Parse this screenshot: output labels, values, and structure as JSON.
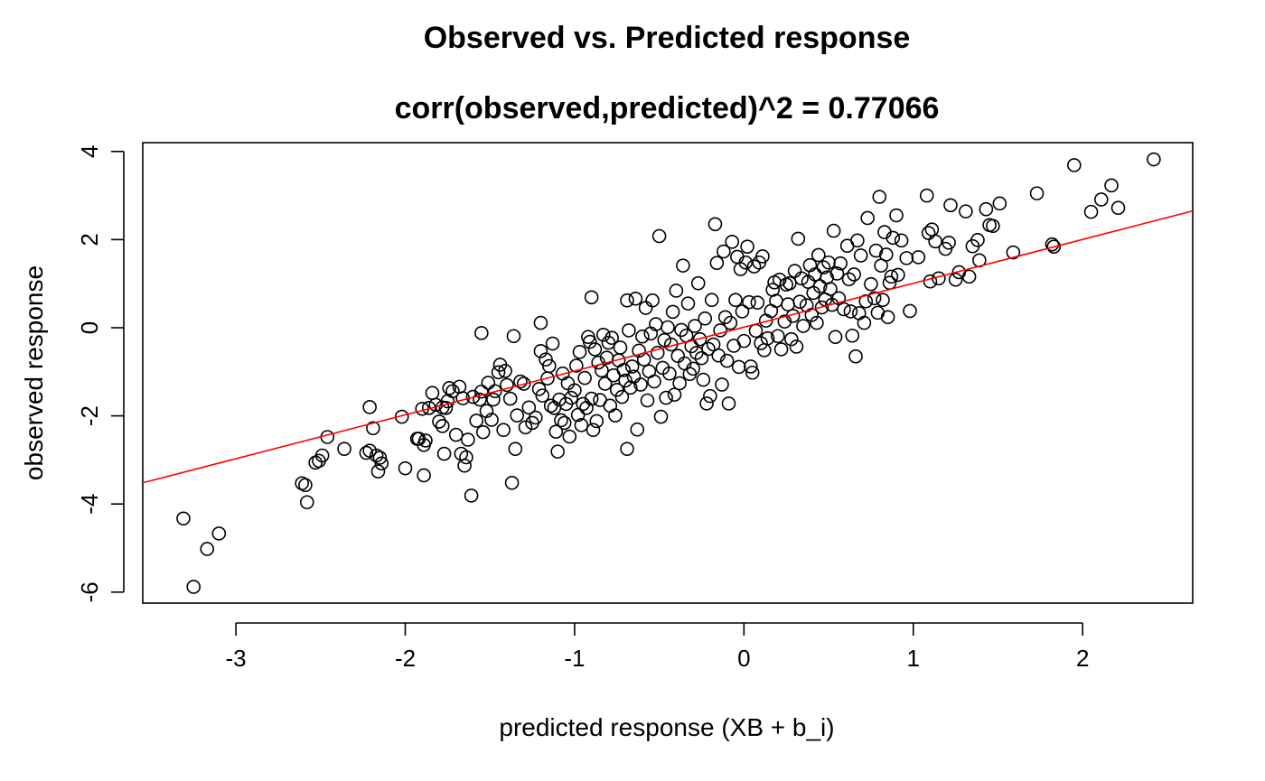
{
  "chart_data": {
    "type": "scatter",
    "title": "Observed vs. Predicted response",
    "subtitle": "corr(observed,predicted)^2 = 0.77066",
    "xlabel": "predicted response (XB + b_i)",
    "ylabel": "observed response",
    "xlim": [
      -3.55,
      2.65
    ],
    "ylim": [
      -6.25,
      4.2
    ],
    "xticks": [
      -3,
      -2,
      -1,
      0,
      1,
      2
    ],
    "yticks": [
      -6,
      -4,
      -2,
      0,
      2,
      4
    ],
    "marker": "open-circle",
    "fit_line": {
      "x": [
        -3.55,
        2.65
      ],
      "y": [
        -3.52,
        2.65
      ],
      "color": "#ff0000"
    },
    "points": [
      [
        -3.31,
        -4.33
      ],
      [
        -3.25,
        -5.88
      ],
      [
        -3.17,
        -5.02
      ],
      [
        -3.1,
        -4.67
      ],
      [
        -2.61,
        -3.53
      ],
      [
        -2.59,
        -3.57
      ],
      [
        -2.58,
        -3.96
      ],
      [
        -2.53,
        -3.06
      ],
      [
        -2.51,
        -3.02
      ],
      [
        -2.49,
        -2.9
      ],
      [
        -2.46,
        -2.48
      ],
      [
        -2.36,
        -2.75
      ],
      [
        -2.23,
        -2.84
      ],
      [
        -2.21,
        -2.79
      ],
      [
        -2.21,
        -1.8
      ],
      [
        -2.19,
        -2.28
      ],
      [
        -2.17,
        -2.9
      ],
      [
        -2.16,
        -3.26
      ],
      [
        -2.15,
        -2.95
      ],
      [
        -2.14,
        -3.08
      ],
      [
        -2.02,
        -2.02
      ],
      [
        -2.0,
        -3.19
      ],
      [
        -1.93,
        -2.52
      ],
      [
        -1.92,
        -2.52
      ],
      [
        -1.9,
        -1.84
      ],
      [
        -1.89,
        -2.66
      ],
      [
        -1.89,
        -3.35
      ],
      [
        -1.88,
        -2.56
      ],
      [
        -1.86,
        -1.82
      ],
      [
        -1.84,
        -1.48
      ],
      [
        -1.82,
        -1.75
      ],
      [
        -1.8,
        -2.13
      ],
      [
        -1.78,
        -2.23
      ],
      [
        -1.78,
        -1.81
      ],
      [
        -1.77,
        -2.86
      ],
      [
        -1.76,
        -1.82
      ],
      [
        -1.75,
        -1.67
      ],
      [
        -1.74,
        -1.37
      ],
      [
        -1.72,
        -1.44
      ],
      [
        -1.7,
        -2.43
      ],
      [
        -1.68,
        -1.34
      ],
      [
        -1.67,
        -2.86
      ],
      [
        -1.66,
        -1.6
      ],
      [
        -1.65,
        -3.13
      ],
      [
        -1.64,
        -2.94
      ],
      [
        -1.63,
        -2.54
      ],
      [
        -1.61,
        -3.81
      ],
      [
        -1.6,
        -1.57
      ],
      [
        -1.58,
        -2.11
      ],
      [
        -1.56,
        -1.63
      ],
      [
        -1.55,
        -1.45
      ],
      [
        -1.55,
        -0.12
      ],
      [
        -1.54,
        -2.37
      ],
      [
        -1.52,
        -1.89
      ],
      [
        -1.51,
        -1.25
      ],
      [
        -1.49,
        -2.09
      ],
      [
        -1.48,
        -1.63
      ],
      [
        -1.47,
        -1.44
      ],
      [
        -1.45,
        -1.01
      ],
      [
        -1.44,
        -0.84
      ],
      [
        -1.42,
        -2.32
      ],
      [
        -1.41,
        -0.98
      ],
      [
        -1.4,
        -1.3
      ],
      [
        -1.38,
        -1.61
      ],
      [
        -1.37,
        -3.52
      ],
      [
        -1.36,
        -0.19
      ],
      [
        -1.35,
        -2.75
      ],
      [
        -1.34,
        -1.99
      ],
      [
        -1.32,
        -1.22
      ],
      [
        -1.3,
        -1.27
      ],
      [
        -1.29,
        -2.26
      ],
      [
        -1.27,
        -1.81
      ],
      [
        -1.25,
        -2.16
      ],
      [
        -1.23,
        -2.04
      ],
      [
        -1.21,
        -1.39
      ],
      [
        -1.2,
        -0.53
      ],
      [
        -1.2,
        0.11
      ],
      [
        -1.19,
        -1.54
      ],
      [
        -1.17,
        -0.72
      ],
      [
        -1.16,
        -1.15
      ],
      [
        -1.15,
        -0.87
      ],
      [
        -1.14,
        -1.77
      ],
      [
        -1.13,
        -0.36
      ],
      [
        -1.12,
        -1.82
      ],
      [
        -1.11,
        -2.36
      ],
      [
        -1.1,
        -2.81
      ],
      [
        -1.09,
        -1.63
      ],
      [
        -1.08,
        -2.1
      ],
      [
        -1.07,
        -1.04
      ],
      [
        -1.06,
        -2.16
      ],
      [
        -1.05,
        -1.73
      ],
      [
        -1.04,
        -1.26
      ],
      [
        -1.03,
        -2.47
      ],
      [
        -1.02,
        -1.59
      ],
      [
        -1.0,
        -1.42
      ],
      [
        -0.99,
        -0.86
      ],
      [
        -0.98,
        -1.98
      ],
      [
        -0.97,
        -0.55
      ],
      [
        -0.96,
        -2.21
      ],
      [
        -0.95,
        -1.73
      ],
      [
        -0.94,
        -1.14
      ],
      [
        -0.93,
        -1.82
      ],
      [
        -0.92,
        -0.21
      ],
      [
        -0.91,
        -0.32
      ],
      [
        -0.9,
        -1.61
      ],
      [
        -0.9,
        0.69
      ],
      [
        -0.89,
        -2.32
      ],
      [
        -0.88,
        -0.49
      ],
      [
        -0.87,
        -2.12
      ],
      [
        -0.86,
        -0.79
      ],
      [
        -0.85,
        -1.64
      ],
      [
        -0.84,
        -0.97
      ],
      [
        -0.83,
        -0.16
      ],
      [
        -0.82,
        -1.27
      ],
      [
        -0.81,
        -0.68
      ],
      [
        -0.8,
        -0.34
      ],
      [
        -0.79,
        -1.77
      ],
      [
        -0.78,
        -0.23
      ],
      [
        -0.77,
        -1.08
      ],
      [
        -0.76,
        -1.99
      ],
      [
        -0.75,
        -1.41
      ],
      [
        -0.74,
        -0.74
      ],
      [
        -0.73,
        -0.45
      ],
      [
        -0.72,
        -1.57
      ],
      [
        -0.71,
        -0.96
      ],
      [
        -0.7,
        -1.2
      ],
      [
        -0.69,
        -2.75
      ],
      [
        -0.69,
        0.62
      ],
      [
        -0.68,
        -0.06
      ],
      [
        -0.67,
        -1.36
      ],
      [
        -0.66,
        -0.88
      ],
      [
        -0.65,
        -1.11
      ],
      [
        -0.64,
        0.66
      ],
      [
        -0.63,
        -2.31
      ],
      [
        -0.62,
        -0.52
      ],
      [
        -0.61,
        -1.29
      ],
      [
        -0.6,
        -0.2
      ],
      [
        -0.59,
        -0.72
      ],
      [
        -0.58,
        0.45
      ],
      [
        -0.57,
        -1.65
      ],
      [
        -0.56,
        -0.99
      ],
      [
        -0.55,
        -0.13
      ],
      [
        -0.54,
        0.62
      ],
      [
        -0.53,
        -1.22
      ],
      [
        -0.52,
        0.08
      ],
      [
        -0.51,
        -0.57
      ],
      [
        -0.5,
        2.08
      ],
      [
        -0.49,
        -2.02
      ],
      [
        -0.48,
        -0.91
      ],
      [
        -0.47,
        -0.28
      ],
      [
        -0.46,
        -1.59
      ],
      [
        -0.45,
        0.01
      ],
      [
        -0.44,
        -1.04
      ],
      [
        -0.43,
        -0.38
      ],
      [
        -0.42,
        0.36
      ],
      [
        -0.41,
        -1.52
      ],
      [
        -0.4,
        0.84
      ],
      [
        -0.39,
        -0.64
      ],
      [
        -0.38,
        -1.26
      ],
      [
        -0.37,
        -0.05
      ],
      [
        -0.36,
        1.41
      ],
      [
        -0.35,
        -0.81
      ],
      [
        -0.34,
        -0.18
      ],
      [
        -0.33,
        0.55
      ],
      [
        -0.32,
        -1.05
      ],
      [
        -0.31,
        -0.42
      ],
      [
        -0.3,
        -0.93
      ],
      [
        -0.29,
        0.04
      ],
      [
        -0.28,
        -0.57
      ],
      [
        -0.27,
        1.01
      ],
      [
        -0.26,
        -0.26
      ],
      [
        -0.25,
        -0.69
      ],
      [
        -0.24,
        -1.18
      ],
      [
        -0.23,
        0.21
      ],
      [
        -0.22,
        -1.72
      ],
      [
        -0.21,
        -0.48
      ],
      [
        -0.2,
        -1.55
      ],
      [
        -0.19,
        0.63
      ],
      [
        -0.18,
        -0.38
      ],
      [
        -0.17,
        2.35
      ],
      [
        -0.16,
        1.47
      ],
      [
        -0.15,
        -0.63
      ],
      [
        -0.14,
        -0.06
      ],
      [
        -0.13,
        -1.29
      ],
      [
        -0.12,
        1.73
      ],
      [
        -0.11,
        0.24
      ],
      [
        -0.1,
        -0.75
      ],
      [
        -0.09,
        -1.72
      ],
      [
        -0.08,
        0.11
      ],
      [
        -0.07,
        1.95
      ],
      [
        -0.06,
        -0.41
      ],
      [
        -0.05,
        0.63
      ],
      [
        -0.04,
        1.61
      ],
      [
        -0.03,
        -0.89
      ],
      [
        -0.02,
        1.33
      ],
      [
        -0.01,
        0.37
      ],
      [
        0.0,
        -0.3
      ],
      [
        0.01,
        1.48
      ],
      [
        0.02,
        1.84
      ],
      [
        0.03,
        0.58
      ],
      [
        0.04,
        -0.88
      ],
      [
        0.05,
        -1.02
      ],
      [
        0.06,
        1.39
      ],
      [
        0.07,
        -0.07
      ],
      [
        0.08,
        0.57
      ],
      [
        0.09,
        1.48
      ],
      [
        0.1,
        -0.35
      ],
      [
        0.11,
        1.62
      ],
      [
        0.12,
        -0.51
      ],
      [
        0.13,
        0.16
      ],
      [
        0.14,
        -0.24
      ],
      [
        0.16,
        0.38
      ],
      [
        0.17,
        0.86
      ],
      [
        0.18,
        1.03
      ],
      [
        0.19,
        0.61
      ],
      [
        0.2,
        -0.19
      ],
      [
        0.21,
        1.09
      ],
      [
        0.22,
        -0.49
      ],
      [
        0.24,
        0.14
      ],
      [
        0.25,
        0.98
      ],
      [
        0.26,
        0.53
      ],
      [
        0.27,
        1.01
      ],
      [
        0.28,
        -0.26
      ],
      [
        0.29,
        0.27
      ],
      [
        0.3,
        1.29
      ],
      [
        0.31,
        -0.43
      ],
      [
        0.32,
        2.02
      ],
      [
        0.33,
        0.59
      ],
      [
        0.34,
        1.12
      ],
      [
        0.35,
        0.04
      ],
      [
        0.37,
        0.51
      ],
      [
        0.38,
        1.04
      ],
      [
        0.39,
        1.42
      ],
      [
        0.4,
        0.29
      ],
      [
        0.41,
        0.79
      ],
      [
        0.42,
        1.21
      ],
      [
        0.43,
        0.11
      ],
      [
        0.44,
        1.65
      ],
      [
        0.45,
        0.94
      ],
      [
        0.46,
        0.46
      ],
      [
        0.47,
        1.37
      ],
      [
        0.48,
        0.64
      ],
      [
        0.49,
        1.14
      ],
      [
        0.5,
        1.48
      ],
      [
        0.51,
        0.88
      ],
      [
        0.52,
        0.52
      ],
      [
        0.53,
        2.2
      ],
      [
        0.54,
        -0.21
      ],
      [
        0.55,
        1.23
      ],
      [
        0.56,
        0.67
      ],
      [
        0.57,
        1.46
      ],
      [
        0.59,
        0.42
      ],
      [
        0.61,
        1.86
      ],
      [
        0.62,
        1.1
      ],
      [
        0.63,
        0.37
      ],
      [
        0.64,
        -0.18
      ],
      [
        0.65,
        1.21
      ],
      [
        0.66,
        -0.65
      ],
      [
        0.67,
        1.98
      ],
      [
        0.68,
        0.33
      ],
      [
        0.69,
        1.64
      ],
      [
        0.71,
        0.11
      ],
      [
        0.72,
        0.6
      ],
      [
        0.73,
        2.49
      ],
      [
        0.75,
        0.99
      ],
      [
        0.77,
        0.67
      ],
      [
        0.78,
        1.75
      ],
      [
        0.79,
        0.34
      ],
      [
        0.8,
        2.97
      ],
      [
        0.81,
        1.41
      ],
      [
        0.82,
        0.63
      ],
      [
        0.83,
        2.17
      ],
      [
        0.84,
        1.66
      ],
      [
        0.85,
        0.24
      ],
      [
        0.86,
        1.02
      ],
      [
        0.87,
        1.16
      ],
      [
        0.88,
        2.04
      ],
      [
        0.9,
        2.55
      ],
      [
        0.91,
        1.2
      ],
      [
        0.93,
        1.98
      ],
      [
        0.96,
        1.58
      ],
      [
        0.98,
        0.38
      ],
      [
        1.03,
        1.6
      ],
      [
        1.08,
        3.0
      ],
      [
        1.09,
        2.15
      ],
      [
        1.1,
        1.05
      ],
      [
        1.11,
        2.23
      ],
      [
        1.13,
        1.96
      ],
      [
        1.15,
        1.12
      ],
      [
        1.19,
        1.79
      ],
      [
        1.21,
        1.93
      ],
      [
        1.22,
        2.78
      ],
      [
        1.25,
        1.09
      ],
      [
        1.27,
        1.26
      ],
      [
        1.31,
        2.64
      ],
      [
        1.33,
        1.16
      ],
      [
        1.35,
        1.85
      ],
      [
        1.38,
        1.99
      ],
      [
        1.39,
        1.53
      ],
      [
        1.43,
        2.69
      ],
      [
        1.45,
        2.33
      ],
      [
        1.47,
        2.31
      ],
      [
        1.51,
        2.82
      ],
      [
        1.59,
        1.71
      ],
      [
        1.73,
        3.05
      ],
      [
        1.82,
        1.89
      ],
      [
        1.83,
        1.84
      ],
      [
        1.95,
        3.69
      ],
      [
        2.05,
        2.63
      ],
      [
        2.11,
        2.91
      ],
      [
        2.17,
        3.23
      ],
      [
        2.21,
        2.72
      ],
      [
        2.42,
        3.82
      ]
    ]
  }
}
